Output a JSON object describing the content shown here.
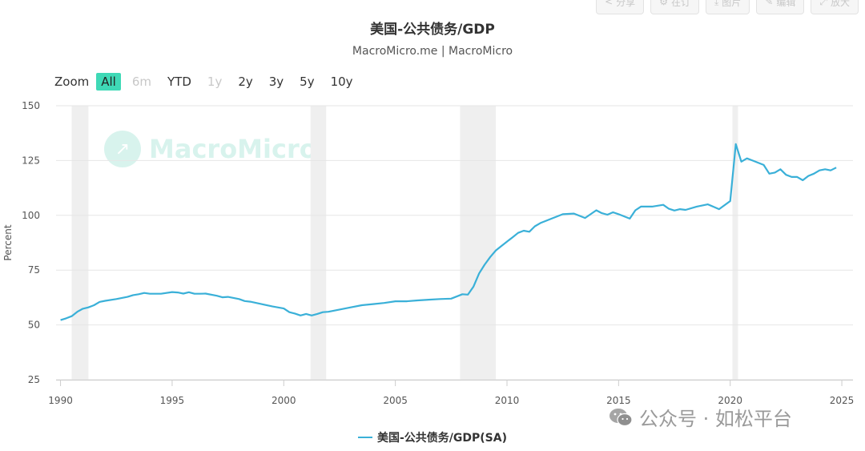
{
  "toolbar": [
    {
      "label": "分享",
      "icon": "share-icon"
    },
    {
      "label": "在订",
      "icon": "gear-icon"
    },
    {
      "label": "图片",
      "icon": "download-icon"
    },
    {
      "label": "编辑",
      "icon": "pencil-icon"
    },
    {
      "label": "放大",
      "icon": "expand-icon"
    }
  ],
  "zoom": {
    "label": "Zoom",
    "buttons": [
      {
        "label": "All",
        "state": "active"
      },
      {
        "label": "6m",
        "state": "disabled"
      },
      {
        "label": "YTD",
        "state": "normal"
      },
      {
        "label": "1y",
        "state": "disabled"
      },
      {
        "label": "2y",
        "state": "normal"
      },
      {
        "label": "3y",
        "state": "normal"
      },
      {
        "label": "5y",
        "state": "normal"
      },
      {
        "label": "10y",
        "state": "normal"
      }
    ]
  },
  "watermark": {
    "text": "MacroMicro"
  },
  "wechat": {
    "text": "公众号 · 如松平台"
  },
  "colors": {
    "series": "#3ab0d8",
    "recession": "#efefef",
    "accent": "#3fd9b6"
  },
  "chart_data": {
    "type": "line",
    "title": "美国-公共债务/GDP",
    "subtitle": "MacroMicro.me | MacroMicro",
    "ylabel": "Percent",
    "xlabel": "",
    "ylim": [
      25,
      150
    ],
    "yticks": [
      25,
      50,
      75,
      100,
      125,
      150
    ],
    "xlim": [
      1989.8,
      2025.5
    ],
    "xticks": [
      1990,
      1995,
      2000,
      2005,
      2010,
      2015,
      2020,
      2025
    ],
    "grid": true,
    "legend_position": "bottom-center",
    "recessions": [
      [
        1990.5,
        1991.25
      ],
      [
        2001.2,
        2001.9
      ],
      [
        2007.9,
        2009.5
      ],
      [
        2020.1,
        2020.35
      ]
    ],
    "series": [
      {
        "name": "美国-公共债务/GDP(SA)",
        "x": [
          1990.0,
          1990.25,
          1990.5,
          1990.75,
          1991.0,
          1991.25,
          1991.5,
          1991.75,
          1992.0,
          1992.5,
          1993.0,
          1993.25,
          1993.5,
          1993.75,
          1994.0,
          1994.5,
          1995.0,
          1995.25,
          1995.5,
          1995.75,
          1996.0,
          1996.25,
          1996.5,
          1997.0,
          1997.25,
          1997.5,
          1998.0,
          1998.25,
          1998.5,
          1999.0,
          1999.5,
          2000.0,
          2000.25,
          2000.5,
          2000.75,
          2001.0,
          2001.25,
          2001.5,
          2001.75,
          2002.0,
          2002.5,
          2003.0,
          2003.5,
          2004.0,
          2004.5,
          2005.0,
          2005.5,
          2006.0,
          2006.5,
          2007.0,
          2007.5,
          2008.0,
          2008.25,
          2008.5,
          2008.75,
          2009.0,
          2009.25,
          2009.5,
          2009.75,
          2010.0,
          2010.25,
          2010.5,
          2010.75,
          2011.0,
          2011.25,
          2011.5,
          2011.75,
          2012.0,
          2012.5,
          2013.0,
          2013.5,
          2014.0,
          2014.25,
          2014.5,
          2014.75,
          2015.0,
          2015.5,
          2015.75,
          2016.0,
          2016.5,
          2017.0,
          2017.25,
          2017.5,
          2017.75,
          2018.0,
          2018.5,
          2019.0,
          2019.5,
          2020.0,
          2020.25,
          2020.5,
          2020.75,
          2021.0,
          2021.5,
          2021.75,
          2022.0,
          2022.25,
          2022.5,
          2022.75,
          2023.0,
          2023.25,
          2023.5,
          2023.75,
          2024.0,
          2024.25,
          2024.5,
          2024.75
        ],
        "values": [
          52.2,
          53.0,
          54.0,
          56.0,
          57.4,
          58.0,
          59.0,
          60.5,
          61.0,
          61.8,
          62.8,
          63.6,
          64.0,
          64.6,
          64.2,
          64.2,
          65.0,
          64.8,
          64.3,
          64.9,
          64.2,
          64.2,
          64.3,
          63.3,
          62.6,
          62.8,
          61.8,
          60.9,
          60.6,
          59.5,
          58.4,
          57.5,
          55.8,
          55.2,
          54.3,
          55.0,
          54.3,
          55.0,
          55.8,
          56.0,
          57.0,
          58.0,
          59.0,
          59.5,
          60.0,
          60.8,
          60.8,
          61.2,
          61.5,
          61.8,
          62.0,
          64.0,
          63.8,
          67.5,
          73.5,
          77.5,
          81.0,
          84.0,
          86.0,
          88.0,
          90.0,
          92.0,
          93.0,
          92.5,
          95.0,
          96.5,
          97.5,
          98.5,
          100.5,
          100.8,
          98.8,
          102.3,
          101.0,
          100.3,
          101.4,
          100.5,
          98.5,
          102.3,
          104.0,
          104.0,
          104.8,
          103.0,
          102.2,
          102.8,
          102.5,
          104.0,
          105.0,
          102.8,
          106.5,
          132.5,
          124.5,
          126.0,
          125.0,
          123.0,
          119.0,
          119.5,
          121.0,
          118.5,
          117.5,
          117.5,
          116.0,
          118.0,
          119.0,
          120.5,
          121.0,
          120.5,
          121.8
        ]
      }
    ]
  }
}
